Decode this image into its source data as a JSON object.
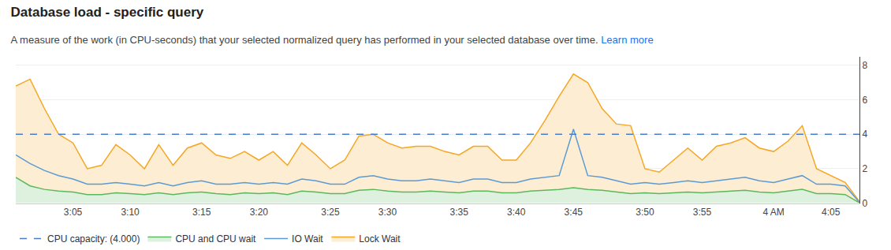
{
  "chart_data": {
    "type": "line",
    "title": "Database load - specific query",
    "subtitle": "A measure of the work (in CPU-seconds) that your selected normalized query has performed in your selected database over time.",
    "annotations": [
      {
        "text": "Learn more",
        "color": "#1a73e8"
      }
    ],
    "categories": [
      null,
      null,
      null,
      null,
      "3:05",
      null,
      null,
      null,
      "3:10",
      null,
      null,
      null,
      null,
      "3:15",
      null,
      null,
      null,
      "3:20",
      null,
      null,
      null,
      null,
      "3:25",
      null,
      null,
      null,
      "3:30",
      null,
      null,
      null,
      null,
      "3:35",
      null,
      null,
      null,
      "3:40",
      null,
      null,
      null,
      "3:45",
      null,
      null,
      null,
      null,
      "3:50",
      null,
      null,
      null,
      "3:55",
      null,
      null,
      null,
      null,
      "4 AM",
      null,
      null,
      null,
      "4:05",
      null,
      null
    ],
    "ylim": [
      0,
      8.5
    ],
    "yticks": [
      0,
      2,
      4,
      6,
      8
    ],
    "grid": true,
    "legend": "bottom",
    "series": [
      {
        "name": "CPU capacity: (4.000)",
        "type": "line",
        "line_style": "dashed",
        "color": "#4a7cc7",
        "values": [
          4.0,
          4.0,
          4.0,
          4.0,
          4.0,
          4.0,
          4.0,
          4.0,
          4.0,
          4.0,
          4.0,
          4.0,
          4.0,
          4.0,
          4.0,
          4.0,
          4.0,
          4.0,
          4.0,
          4.0,
          4.0,
          4.0,
          4.0,
          4.0,
          4.0,
          4.0,
          4.0,
          4.0,
          4.0,
          4.0,
          4.0,
          4.0,
          4.0,
          4.0,
          4.0,
          4.0,
          4.0,
          4.0,
          4.0,
          4.0,
          4.0,
          4.0,
          4.0,
          4.0,
          4.0,
          4.0,
          4.0,
          4.0,
          4.0,
          4.0,
          4.0,
          4.0,
          4.0,
          4.0,
          4.0,
          4.0,
          4.0,
          4.0,
          4.0,
          4.0
        ]
      },
      {
        "name": "CPU and CPU wait",
        "type": "area",
        "color": "#5cb85c",
        "values": [
          1.5,
          1.0,
          0.8,
          0.7,
          0.65,
          0.5,
          0.5,
          0.6,
          0.55,
          0.5,
          0.6,
          0.5,
          0.6,
          0.65,
          0.55,
          0.5,
          0.6,
          0.55,
          0.6,
          0.5,
          0.7,
          0.65,
          0.55,
          0.55,
          0.75,
          0.8,
          0.7,
          0.65,
          0.65,
          0.7,
          0.65,
          0.6,
          0.7,
          0.7,
          0.6,
          0.6,
          0.7,
          0.75,
          0.8,
          0.9,
          0.8,
          0.75,
          0.65,
          0.55,
          0.6,
          0.55,
          0.6,
          0.65,
          0.6,
          0.65,
          0.7,
          0.75,
          0.65,
          0.6,
          0.7,
          0.8,
          0.55,
          0.55,
          0.5,
          0.02
        ]
      },
      {
        "name": "IO Wait",
        "type": "line",
        "color": "#5b9bd5",
        "values": [
          2.8,
          2.3,
          1.9,
          1.6,
          1.4,
          1.1,
          1.1,
          1.2,
          1.1,
          1.0,
          1.2,
          1.0,
          1.2,
          1.3,
          1.1,
          1.1,
          1.2,
          1.1,
          1.2,
          1.1,
          1.4,
          1.3,
          1.1,
          1.1,
          1.5,
          1.6,
          1.4,
          1.3,
          1.3,
          1.4,
          1.3,
          1.2,
          1.4,
          1.4,
          1.2,
          1.2,
          1.4,
          1.5,
          1.6,
          4.3,
          1.6,
          1.5,
          1.3,
          1.1,
          1.2,
          1.1,
          1.2,
          1.3,
          1.2,
          1.3,
          1.4,
          1.5,
          1.3,
          1.2,
          1.4,
          1.6,
          1.1,
          1.1,
          1.0,
          0.05
        ]
      },
      {
        "name": "Lock Wait",
        "type": "area",
        "color": "#f5a623",
        "values": [
          6.8,
          7.2,
          5.5,
          4.0,
          3.5,
          2.0,
          2.2,
          3.4,
          2.8,
          2.0,
          3.4,
          2.2,
          3.2,
          3.5,
          2.8,
          2.6,
          3.0,
          2.5,
          3.0,
          2.2,
          3.5,
          2.8,
          2.0,
          2.5,
          3.9,
          4.0,
          3.5,
          3.2,
          3.3,
          3.3,
          3.0,
          2.8,
          3.3,
          3.3,
          2.5,
          2.5,
          3.5,
          4.8,
          6.2,
          7.5,
          7.0,
          5.5,
          4.6,
          4.5,
          2.0,
          1.8,
          2.5,
          3.2,
          2.5,
          3.3,
          3.5,
          3.8,
          3.2,
          3.0,
          3.6,
          4.5,
          2.0,
          1.6,
          1.2,
          0.1
        ]
      }
    ]
  }
}
